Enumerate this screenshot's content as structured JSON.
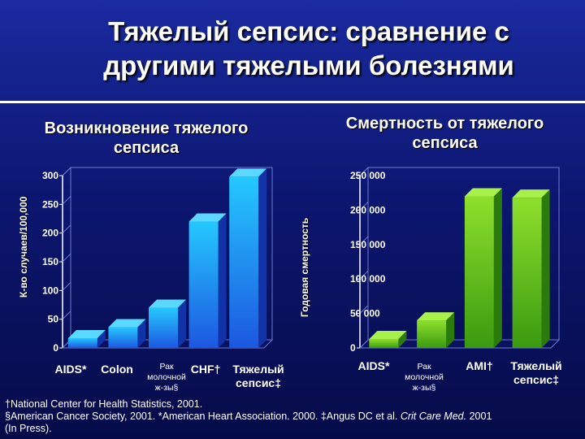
{
  "slide": {
    "title_line1": "Тяжелый сепсис: сравнение с",
    "title_line2": "другими тяжелыми болезнями"
  },
  "chart_data": [
    {
      "type": "bar",
      "title": "Возникновение тяжелого сепсиса",
      "ylabel": "К-во случаев/100,000",
      "ylim": [
        0,
        300
      ],
      "yticks": [
        "0",
        "50",
        "100",
        "150",
        "200",
        "250",
        "300"
      ],
      "categories": [
        {
          "label": "AIDS*",
          "sub": ""
        },
        {
          "label": "Colon",
          "sub": ""
        },
        {
          "label": "Рак молочной ж-зы§",
          "sub": ""
        },
        {
          "label": "CHF†",
          "sub": ""
        },
        {
          "label": "Тяжелый сепсис‡",
          "sub": ""
        }
      ],
      "values": [
        17,
        36,
        70,
        220,
        298
      ],
      "colors": [
        "#1e9cff",
        "#1e9cff",
        "#1e9cff",
        "#1e9cff",
        "#1e9cff"
      ],
      "grid": false
    },
    {
      "type": "bar",
      "title": "Смертность от тяжелого сепсиса",
      "ylabel": "Годовая смертность",
      "ylim": [
        0,
        250000
      ],
      "yticks": [
        "0",
        "50 000",
        "100 000",
        "150 000",
        "200 000",
        "250 000"
      ],
      "categories": [
        {
          "label": "AIDS*",
          "sub": ""
        },
        {
          "label": "Рак молочной ж-зы§",
          "sub": ""
        },
        {
          "label": "AMI†",
          "sub": ""
        },
        {
          "label": "Тяжелый сепсис‡",
          "sub": ""
        }
      ],
      "values": [
        13000,
        40000,
        220000,
        218000
      ],
      "colors": [
        "#5cc21a",
        "#5cc21a",
        "#5cc21a",
        "#5cc21a"
      ],
      "grid": false
    }
  ],
  "footnotes": {
    "line1": "†National Center for Health Statistics, 2001.",
    "line2": "§American Cancer Society, 2001. *American Heart Association. 2000. ‡Angus DC et al. ",
    "line2_italic": "Crit Care Med.",
    "line2_end": " 2001",
    "line3": "(In Press)."
  }
}
